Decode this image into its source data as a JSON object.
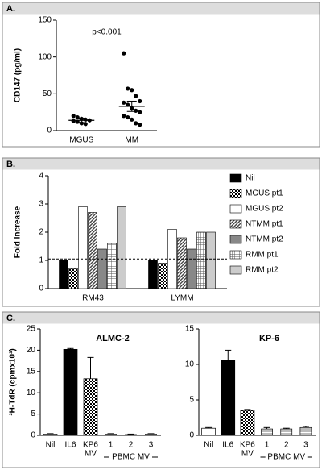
{
  "chart_data": [
    {
      "type": "dot",
      "panel_label": "A.",
      "annotation": "p<0.001",
      "y_label": "CD147 (pg/ml)",
      "categories": [
        "MGUS",
        "MM"
      ],
      "values": [
        [
          20,
          18,
          16,
          15,
          14,
          13,
          12,
          10,
          9
        ],
        [
          105,
          57,
          55,
          47,
          40,
          38,
          35,
          30,
          27,
          25,
          20,
          18,
          15,
          10,
          8
        ]
      ],
      "means": [
        14,
        33
      ],
      "errors": [
        3,
        7
      ],
      "color": "#000000",
      "ylim": [
        0,
        150
      ],
      "yticks": [
        0,
        50,
        100,
        150
      ]
    },
    {
      "type": "bar",
      "panel_label": "B.",
      "y_label": "Fold Increase",
      "categories": [
        "RM43",
        "LYMM"
      ],
      "series": [
        {
          "name": "Nil",
          "color": "#000000",
          "values": [
            1.0,
            1.0
          ]
        },
        {
          "name": "MGUS pt1",
          "color": "checker",
          "values": [
            0.7,
            0.9
          ]
        },
        {
          "name": "MGUS pt2",
          "color": "#ffffff",
          "values": [
            2.9,
            2.1
          ]
        },
        {
          "name": "NTMM pt1",
          "color": "diagonal",
          "values": [
            2.7,
            1.8
          ]
        },
        {
          "name": "NTMM pt2",
          "color": "#888888",
          "values": [
            1.4,
            1.4
          ]
        },
        {
          "name": "RMM pt1",
          "color": "grid",
          "values": [
            1.6,
            2.0
          ]
        },
        {
          "name": "RMM pt2",
          "color": "#cccccc",
          "values": [
            2.9,
            2.0
          ]
        }
      ],
      "reference_line": 1.05,
      "legend": "right",
      "ylim": [
        0,
        4
      ],
      "yticks": [
        0,
        1,
        2,
        3,
        4
      ]
    },
    {
      "type": "errbar",
      "panel_label": "C.",
      "title": "ALMC-2",
      "y_label": "³H-TdR (cpmx10³)",
      "categories": [
        [
          "Nil"
        ],
        [
          "IL6"
        ],
        [
          "KP6",
          "MV"
        ],
        [
          "1"
        ],
        [
          "2"
        ],
        [
          "3"
        ]
      ],
      "group_label": "PBMC MV",
      "values": [
        0.3,
        20.2,
        13.3,
        0.3,
        0.2,
        0.3
      ],
      "errors": [
        0.1,
        0.2,
        5.0,
        0.1,
        0.1,
        0.1
      ],
      "fills": [
        "#ffffff",
        "#000000",
        "checker",
        "stripes",
        "stripes",
        "stripes"
      ],
      "ylim": [
        0,
        25
      ],
      "yticks": [
        0,
        5,
        10,
        15,
        20,
        25
      ]
    },
    {
      "type": "errbar",
      "title": "KP-6",
      "categories": [
        [
          "Nil"
        ],
        [
          "IL6"
        ],
        [
          "KP6",
          "MV"
        ],
        [
          "1"
        ],
        [
          "2"
        ],
        [
          "3"
        ]
      ],
      "group_label": "PBMC MV",
      "values": [
        1.0,
        10.6,
        3.5,
        0.9,
        0.9,
        1.1
      ],
      "errors": [
        0.1,
        1.4,
        0.15,
        0.2,
        0.1,
        0.15
      ],
      "fills": [
        "#ffffff",
        "#000000",
        "checker",
        "stripes",
        "stripes",
        "stripes"
      ],
      "ylim": [
        0,
        15
      ],
      "yticks": [
        0,
        5,
        10,
        15
      ]
    }
  ]
}
